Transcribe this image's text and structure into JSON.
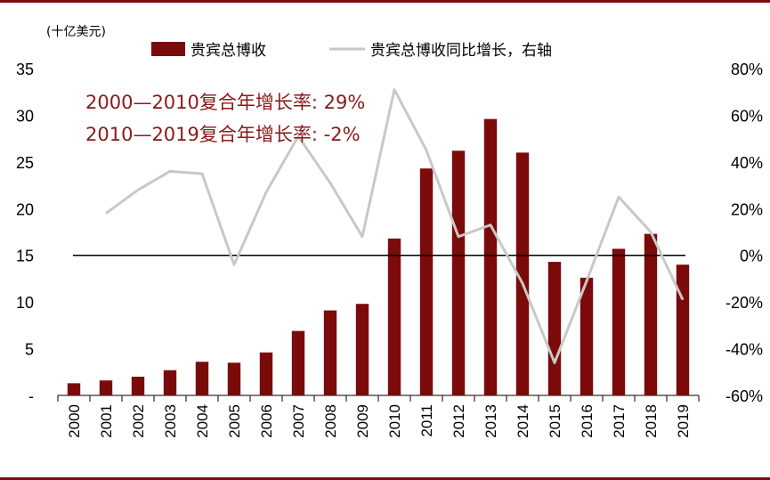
{
  "chart_data": {
    "type": "bar",
    "unit_label": "(十亿美元)",
    "categories": [
      "2000",
      "2001",
      "2002",
      "2003",
      "2004",
      "2005",
      "2006",
      "2007",
      "2008",
      "2009",
      "2010",
      "2011",
      "2012",
      "2013",
      "2014",
      "2015",
      "2016",
      "2017",
      "2018",
      "2019"
    ],
    "series": [
      {
        "name": "贵宾总博收",
        "type": "bar",
        "axis": "left",
        "color": "#7b0a0a",
        "values": [
          1.3,
          1.6,
          2.0,
          2.7,
          3.6,
          3.5,
          4.6,
          6.9,
          9.1,
          9.8,
          16.8,
          24.3,
          26.2,
          29.6,
          26.0,
          14.3,
          12.6,
          15.7,
          17.3,
          14.0
        ]
      },
      {
        "name": "贵宾总博收同比增长，右轴",
        "type": "line",
        "axis": "right",
        "color": "#c8c8c8",
        "values": [
          null,
          18,
          28,
          36,
          35,
          -4,
          27,
          51,
          31,
          8,
          71,
          45,
          8,
          13,
          -12,
          -46,
          -11,
          25,
          10,
          -19
        ]
      }
    ],
    "left_axis": {
      "min": 0,
      "max": 35,
      "ticks": [
        "-",
        "5",
        "10",
        "15",
        "20",
        "25",
        "30",
        "35"
      ]
    },
    "right_axis": {
      "min": -60,
      "max": 80,
      "ticks": [
        "-60%",
        "-40%",
        "-20%",
        "0%",
        "20%",
        "40%",
        "60%",
        "80%"
      ]
    },
    "zero_line_value_right": 0,
    "annotations": [
      "2000—2010复合年增长率: 29%",
      "2010—2019复合年增长率: -2%"
    ],
    "annotation_color": "#8b1a1a",
    "legend_position": "top",
    "grid": false
  }
}
